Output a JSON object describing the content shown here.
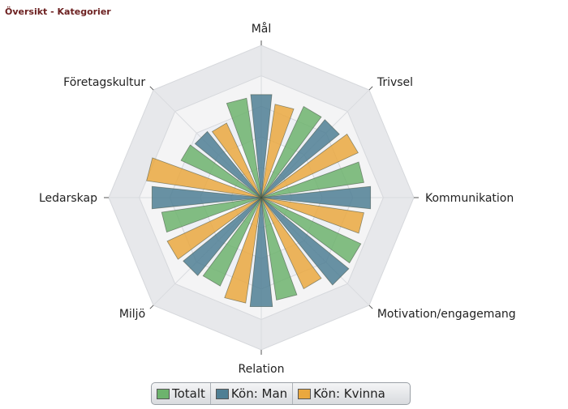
{
  "page": {
    "title": "Översikt - Kategorier"
  },
  "chart_data": {
    "type": "polar-bar",
    "categories": [
      "Mål",
      "Trivsel",
      "Kommunikation",
      "Motivation/engagemang",
      "Relation",
      "Miljö",
      "Ledarskap",
      "Företagskultur"
    ],
    "series": [
      {
        "name": "Totalt",
        "color": "#6db36d",
        "values": [
          3.3,
          3.3,
          3.4,
          3.6,
          3.4,
          3.2,
          3.3,
          2.9
        ]
      },
      {
        "name": "Kön: Man",
        "color": "#4f7f94",
        "values": [
          3.4,
          3.3,
          3.6,
          3.7,
          3.6,
          3.3,
          3.6,
          2.8
        ]
      },
      {
        "name": "Kön: Kvinna",
        "color": "#eaa83f",
        "values": [
          3.1,
          3.5,
          3.4,
          3.3,
          3.5,
          3.4,
          3.8,
          2.7
        ]
      }
    ],
    "r_max": 5,
    "rings": 5,
    "legend_position": "bottom-center",
    "grid": true
  }
}
